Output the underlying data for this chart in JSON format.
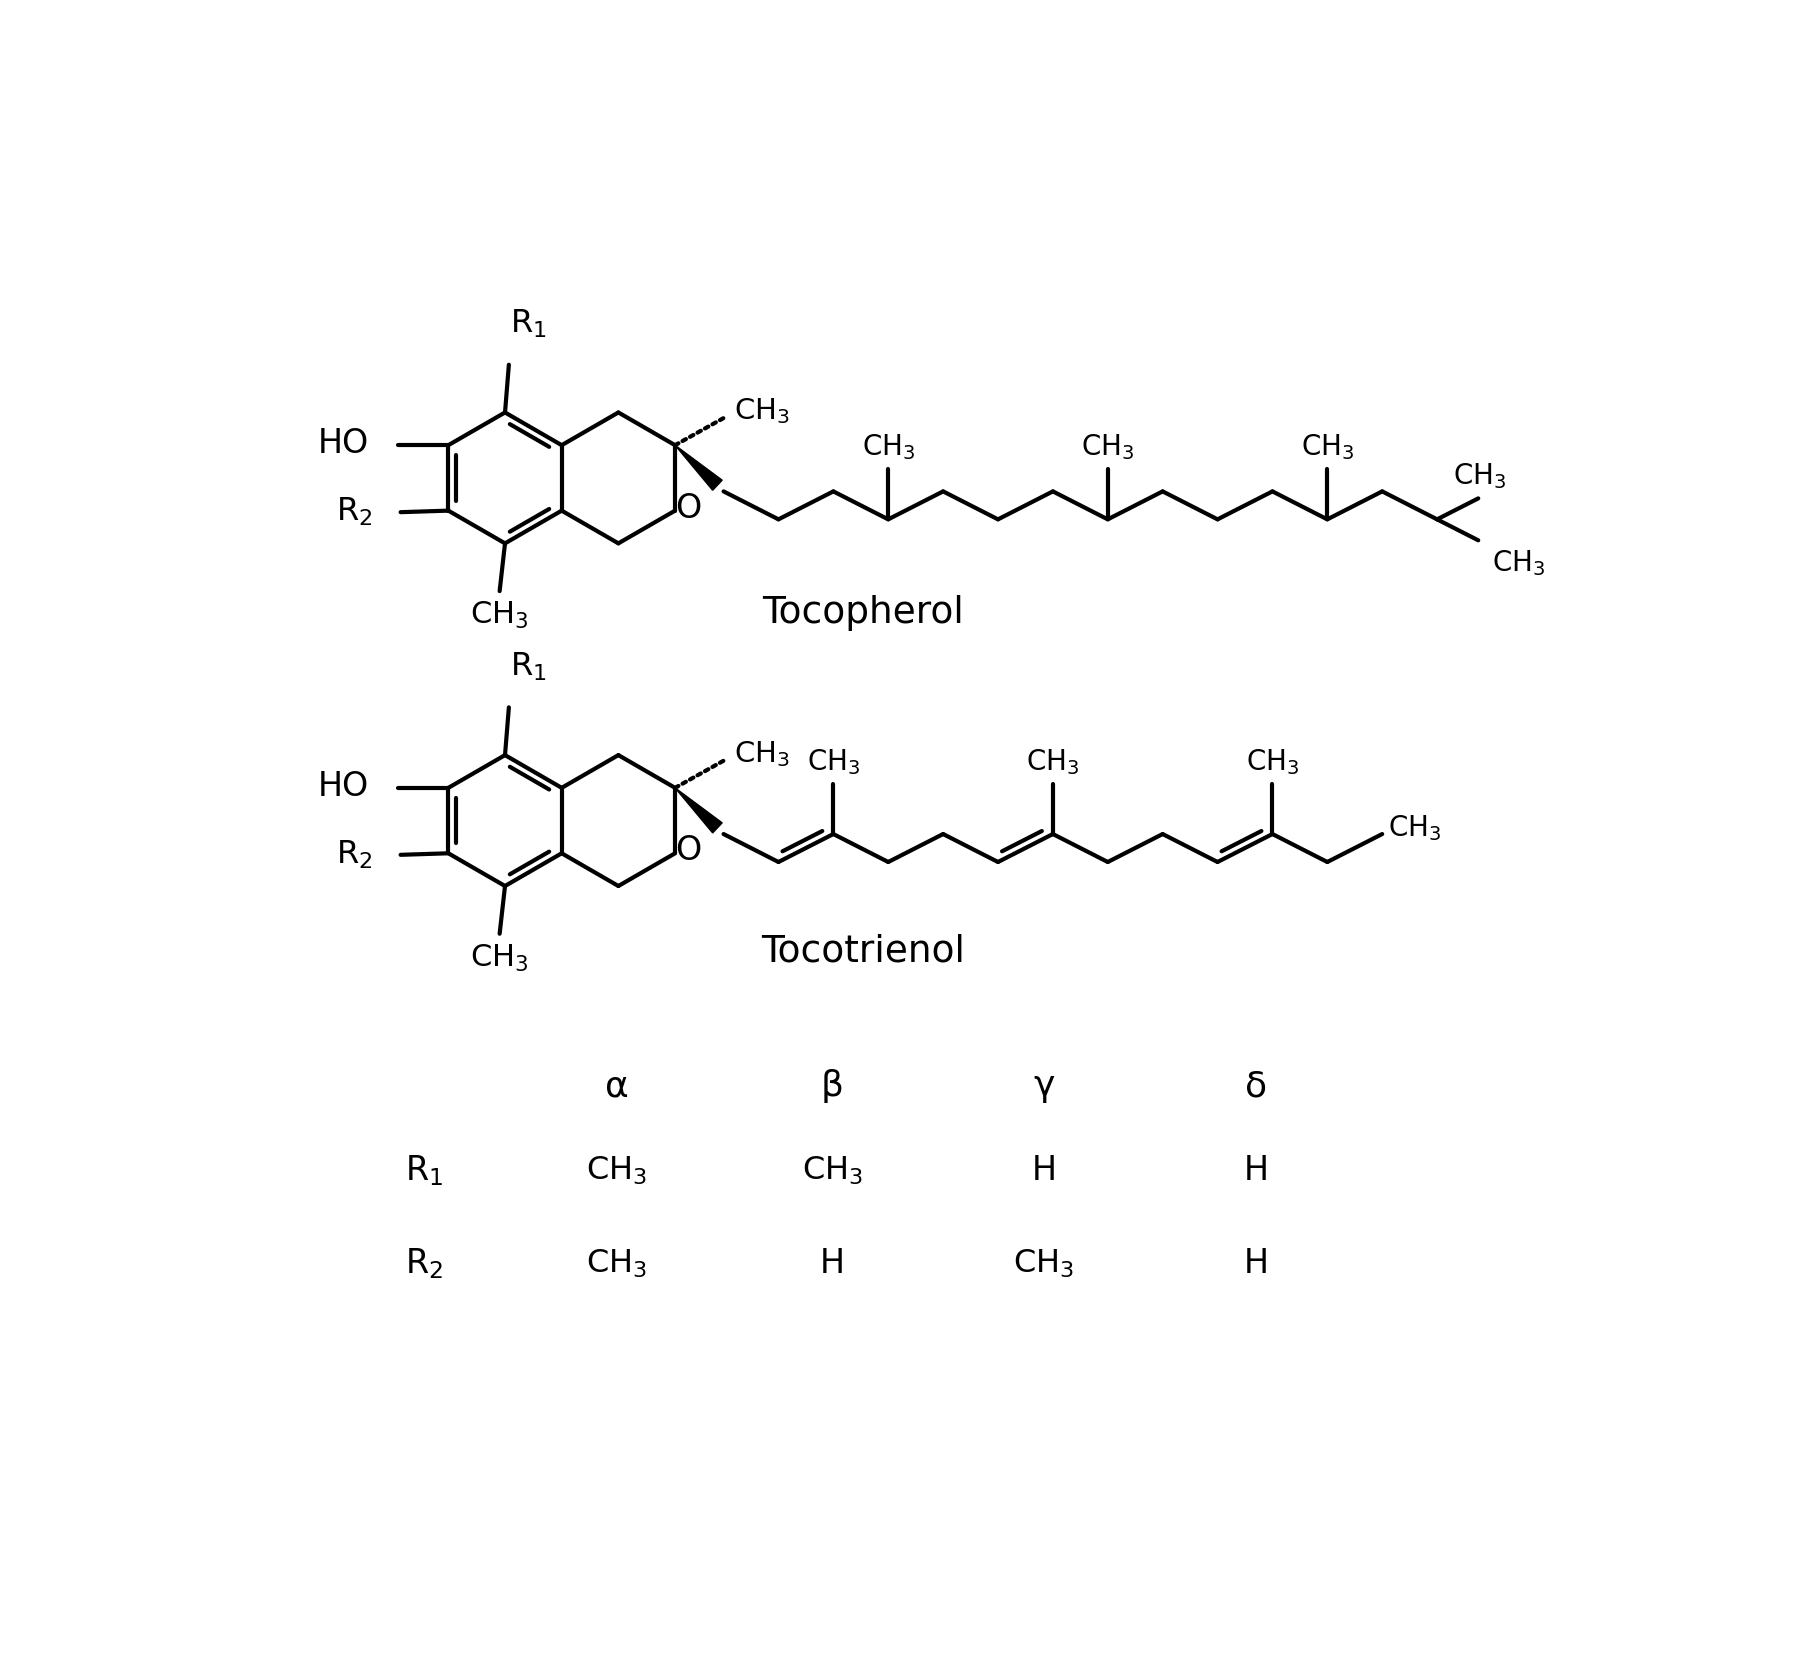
{
  "background_color": "#ffffff",
  "line_width": 3.0,
  "tocopherol_label": "Tocopherol",
  "tocotrienol_label": "Tocotrienol",
  "table_headers": [
    "α",
    "β",
    "γ",
    "δ"
  ],
  "R1_values": [
    "CH3",
    "CH3",
    "H",
    "H"
  ],
  "R2_values": [
    "CH3",
    "H",
    "CH3",
    "H"
  ]
}
